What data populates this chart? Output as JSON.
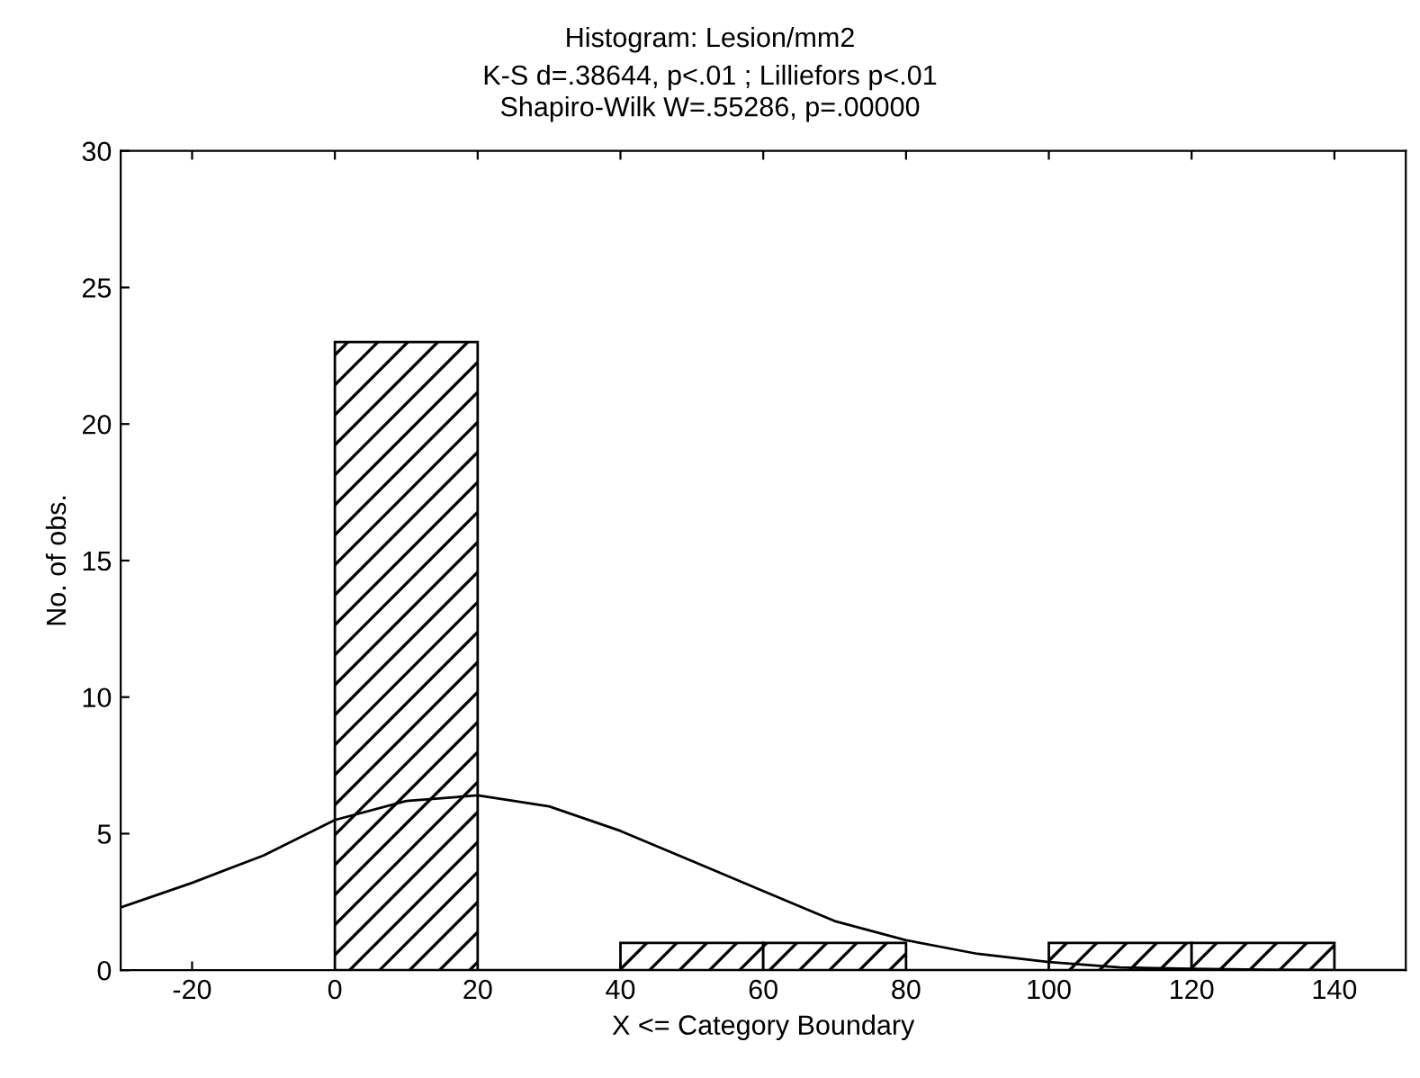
{
  "chart_data": {
    "type": "histogram",
    "title": "Histogram: Lesion/mm2",
    "subtitle": "K-S d=.38644, p<.01 ; Lilliefors p<.01\nShapiro-Wilk W=.55286, p=.00000",
    "xlabel": "X <= Category Boundary",
    "ylabel": "No. of obs.",
    "series": [
      {
        "bins": [
          0,
          20,
          40,
          60,
          80,
          100,
          120,
          140
        ],
        "values": [
          23,
          0,
          1,
          1,
          0,
          1,
          1
        ],
        "color": "#000000"
      },
      {
        "type": "line",
        "x": [
          -30,
          -20,
          -10,
          0,
          10,
          20,
          30,
          40,
          50,
          60,
          70,
          80,
          90,
          100,
          110,
          120,
          130,
          140,
          150
        ],
        "values": [
          2.3,
          3.2,
          4.2,
          5.5,
          6.2,
          6.4,
          6.0,
          5.1,
          4.0,
          2.9,
          1.8,
          1.1,
          0.6,
          0.3,
          0.1,
          0.05,
          0.02,
          0,
          0
        ],
        "color": "#000000"
      }
    ],
    "xlim": [
      -30,
      150
    ],
    "ylim": [
      0,
      30
    ],
    "xticks": [
      -20,
      0,
      20,
      40,
      60,
      80,
      100,
      120,
      140
    ],
    "yticks": [
      0,
      5,
      10,
      15,
      20,
      25,
      30
    ],
    "grid": false,
    "legend": false,
    "marker": "none",
    "line_style": "solid"
  }
}
